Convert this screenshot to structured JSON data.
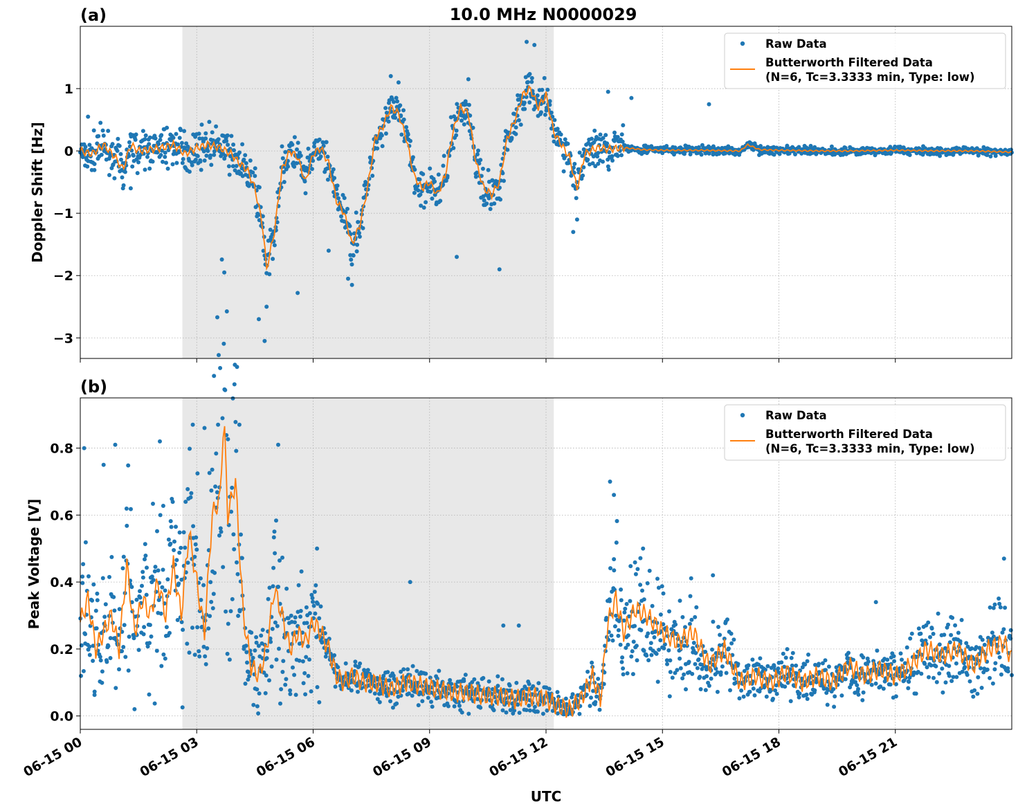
{
  "figure": {
    "title": "10.0 MHz N0000029",
    "xlabel": "UTC"
  },
  "colors": {
    "raw": "#1f77b4",
    "filtered": "#ff7f0e",
    "shade": "#e8e8e8"
  },
  "chart_data": [
    {
      "type": "scatter",
      "panel_label": "(a)",
      "ylabel": "Doppler Shift [Hz]",
      "xlim_hours": [
        0,
        24
      ],
      "ylim": [
        -3.33,
        2.0
      ],
      "shaded_span_hours": [
        2.63,
        12.2
      ],
      "x_tick_labels": [
        "06-15 00",
        "06-15 03",
        "06-15 06",
        "06-15 09",
        "06-15 12",
        "06-15 15",
        "06-15 18",
        "06-15 21"
      ],
      "x_tick_hours": [
        0,
        3,
        6,
        9,
        12,
        15,
        18,
        21
      ],
      "y_ticks": [
        1,
        0,
        -1,
        -2,
        -3
      ],
      "y_tick_labels": [
        "1",
        "0",
        "−1",
        "−2",
        "−3"
      ],
      "legend": [
        "Raw Data",
        "Butterworth Filtered Data",
        "(N=6, Tc=3.3333 min, Type: low)"
      ],
      "legend_position": "top-right",
      "grid": true,
      "series": [
        {
          "name": "Butterworth Filtered Data",
          "kind": "line",
          "x": [
            0,
            0.3,
            0.6,
            0.9,
            1.1,
            1.3,
            1.5,
            1.8,
            2.1,
            2.4,
            2.7,
            3.0,
            3.3,
            3.6,
            3.9,
            4.1,
            4.3,
            4.5,
            4.7,
            4.8,
            5.0,
            5.2,
            5.4,
            5.6,
            5.8,
            6.0,
            6.2,
            6.4,
            6.6,
            6.8,
            7.0,
            7.2,
            7.4,
            7.6,
            7.8,
            8.0,
            8.2,
            8.4,
            8.6,
            8.8,
            9.0,
            9.2,
            9.4,
            9.6,
            9.8,
            10.0,
            10.2,
            10.4,
            10.6,
            10.8,
            11.0,
            11.2,
            11.4,
            11.6,
            11.8,
            12.0,
            12.2,
            12.4,
            12.6,
            12.8,
            13.0,
            13.3,
            13.6,
            14.0,
            14.5,
            15,
            16,
            17,
            17.2,
            17.5,
            18,
            19,
            20,
            21,
            22,
            23,
            24
          ],
          "y": [
            0,
            -0.05,
            0.1,
            -0.1,
            -0.3,
            0.1,
            0,
            0.02,
            0.05,
            0.1,
            -0.05,
            0.05,
            0.1,
            0.05,
            -0.05,
            -0.2,
            -0.3,
            -0.6,
            -1.2,
            -1.9,
            -1.3,
            -0.3,
            0.0,
            -0.1,
            -0.5,
            -0.05,
            0.05,
            -0.2,
            -0.8,
            -1.0,
            -1.5,
            -1.2,
            -0.6,
            0.2,
            0.4,
            0.7,
            0.6,
            0.2,
            -0.4,
            -0.6,
            -0.5,
            -0.7,
            -0.4,
            0.3,
            0.7,
            0.6,
            -0.2,
            -0.6,
            -0.7,
            -0.5,
            0.2,
            0.5,
            0.9,
            1.0,
            0.7,
            0.9,
            0.3,
            0.1,
            -0.1,
            -0.6,
            -0.05,
            0.05,
            0.03,
            0.05,
            0.02,
            0.01,
            0.01,
            0.0,
            0.1,
            0.02,
            0.01,
            0.0,
            0.0,
            0.01,
            0.0,
            0.0,
            -0.02
          ]
        },
        {
          "name": "Raw Data",
          "kind": "scatter",
          "spread": "approx. ±0.3 Hz around filtered curve, narrowing to ±0.05 Hz after 14 UTC",
          "x": [
            0.2,
            1.1,
            1.3,
            4.6,
            4.75,
            4.8,
            5.6,
            6.4,
            6.9,
            7.0,
            8.0,
            8.2,
            9.7,
            10.0,
            10.8,
            11.5,
            11.7,
            12.1,
            12.7,
            12.8,
            13.6,
            14.2,
            16.2
          ],
          "y": [
            0.55,
            -0.6,
            -0.6,
            -2.7,
            -3.05,
            -2.5,
            -2.28,
            -1.6,
            -2.05,
            -2.15,
            1.2,
            1.1,
            -1.7,
            1.15,
            -1.9,
            1.75,
            1.7,
            0.8,
            -1.3,
            -1.1,
            0.95,
            0.85,
            0.75
          ]
        }
      ]
    },
    {
      "type": "scatter",
      "panel_label": "(b)",
      "ylabel": "Peak Voltage [V]",
      "xlim_hours": [
        0,
        24
      ],
      "ylim": [
        -0.04,
        0.95
      ],
      "shaded_span_hours": [
        2.63,
        12.2
      ],
      "x_tick_labels": [
        "06-15 00",
        "06-15 03",
        "06-15 06",
        "06-15 09",
        "06-15 12",
        "06-15 15",
        "06-15 18",
        "06-15 21"
      ],
      "x_tick_hours": [
        0,
        3,
        6,
        9,
        12,
        15,
        18,
        21
      ],
      "y_ticks": [
        0.8,
        0.6,
        0.4,
        0.2,
        0.0
      ],
      "y_tick_labels": [
        "0.8",
        "0.6",
        "0.4",
        "0.2",
        "0.0"
      ],
      "legend": [
        "Raw Data",
        "Butterworth Filtered Data",
        "(N=6, Tc=3.3333 min, Type: low)"
      ],
      "legend_position": "top-right",
      "grid": true,
      "series": [
        {
          "name": "Butterworth Filtered Data",
          "kind": "line",
          "x": [
            0,
            0.2,
            0.4,
            0.6,
            0.8,
            1.0,
            1.2,
            1.4,
            1.6,
            1.8,
            2.0,
            2.2,
            2.4,
            2.6,
            2.8,
            3.0,
            3.2,
            3.4,
            3.6,
            3.7,
            3.8,
            4.0,
            4.2,
            4.4,
            4.6,
            4.8,
            5.0,
            5.2,
            5.4,
            5.6,
            5.8,
            6.0,
            6.2,
            6.4,
            6.6,
            6.8,
            7.0,
            7.3,
            7.6,
            8.0,
            8.4,
            8.8,
            9.2,
            9.6,
            10.0,
            10.4,
            10.8,
            11.2,
            11.6,
            12.0,
            12.3,
            12.6,
            12.9,
            13.2,
            13.4,
            13.6,
            13.8,
            14.0,
            14.3,
            14.6,
            15.0,
            15.4,
            15.8,
            16.2,
            16.6,
            17.0,
            17.4,
            17.8,
            18.2,
            18.6,
            19.0,
            19.4,
            19.8,
            20.2,
            20.6,
            21.0,
            21.4,
            21.8,
            22.2,
            22.6,
            23.0,
            23.4,
            23.8,
            24.0
          ],
          "y": [
            0.28,
            0.35,
            0.2,
            0.25,
            0.3,
            0.2,
            0.45,
            0.25,
            0.35,
            0.3,
            0.4,
            0.3,
            0.45,
            0.3,
            0.55,
            0.4,
            0.25,
            0.6,
            0.65,
            0.9,
            0.6,
            0.7,
            0.3,
            0.15,
            0.12,
            0.2,
            0.38,
            0.3,
            0.2,
            0.25,
            0.22,
            0.28,
            0.25,
            0.2,
            0.12,
            0.1,
            0.12,
            0.1,
            0.1,
            0.08,
            0.1,
            0.09,
            0.08,
            0.07,
            0.07,
            0.06,
            0.06,
            0.05,
            0.06,
            0.05,
            0.03,
            0.02,
            0.05,
            0.12,
            0.05,
            0.28,
            0.35,
            0.25,
            0.32,
            0.3,
            0.25,
            0.22,
            0.25,
            0.15,
            0.2,
            0.1,
            0.12,
            0.1,
            0.13,
            0.1,
            0.12,
            0.1,
            0.15,
            0.12,
            0.14,
            0.12,
            0.15,
            0.2,
            0.18,
            0.2,
            0.15,
            0.2,
            0.22,
            0.17
          ]
        },
        {
          "name": "Raw Data",
          "kind": "scatter",
          "spread": "dense cloud, approx. 0.05–0.8 V before 06 UTC, 0.03–0.15 V 06–13 UTC, 0.03–0.45 V after 13 UTC",
          "x": [
            0.1,
            0.6,
            0.9,
            2.05,
            2.9,
            3.2,
            3.55,
            4.1,
            5.1,
            6.1,
            8.5,
            10.9,
            11.3,
            13.65,
            13.75,
            14.5,
            16.3,
            20.5,
            23.8
          ],
          "y": [
            0.8,
            0.75,
            0.81,
            0.82,
            0.87,
            0.86,
            0.87,
            0.87,
            0.81,
            0.5,
            0.4,
            0.27,
            0.27,
            0.7,
            0.66,
            0.5,
            0.42,
            0.34,
            0.47
          ]
        }
      ]
    }
  ]
}
